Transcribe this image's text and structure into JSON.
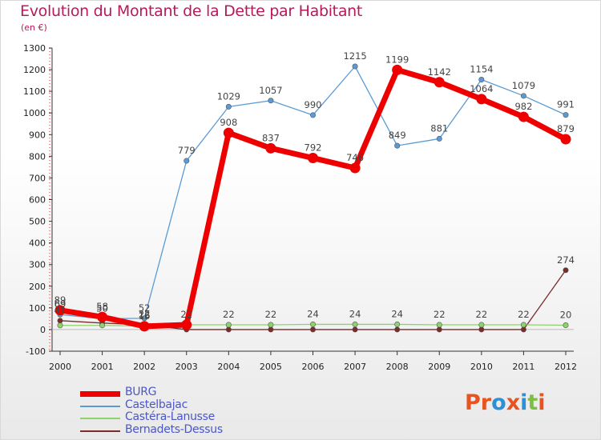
{
  "header": {
    "title": "Evolution du Montant de la Dette par Habitant",
    "subtitle": "(en €)"
  },
  "logo": {
    "text": "Proxiti",
    "colors": [
      "#e8541f",
      "#e8541f",
      "#2d8fd5",
      "#e8541f",
      "#2d8fd5",
      "#7bc043",
      "#e8541f"
    ]
  },
  "chart_data": {
    "type": "line",
    "title": "Evolution du Montant de la Dette par Habitant",
    "subtitle": "(en €)",
    "xlabel": "",
    "ylabel": "",
    "x": [
      "2000",
      "2001",
      "2002",
      "2003",
      "2004",
      "2005",
      "2006",
      "2007",
      "2008",
      "2009",
      "2010",
      "2011",
      "2012"
    ],
    "ylim": [
      -100,
      1300
    ],
    "yticks": [
      -100,
      0,
      100,
      200,
      300,
      400,
      500,
      600,
      700,
      800,
      900,
      1000,
      1100,
      1200,
      1300
    ],
    "grid": false,
    "legend_position": "bottom-left",
    "series": [
      {
        "name": "BURG",
        "color": "#ee0000",
        "values": [
          89,
          58,
          15,
          22,
          908,
          837,
          792,
          746,
          1199,
          1142,
          1064,
          982,
          879
        ],
        "labels": [
          "89",
          "58",
          "15",
          "22",
          "908",
          "837",
          "792",
          "746",
          "1199",
          "1142",
          "1064",
          "982",
          "879"
        ]
      },
      {
        "name": "Castelbajac",
        "color": "#5b9bd5",
        "values": [
          69,
          50,
          52,
          779,
          1029,
          1057,
          990,
          1215,
          849,
          881,
          1154,
          1079,
          991
        ],
        "labels": [
          "69",
          "50",
          "52",
          "779",
          "1029",
          "1057",
          "990",
          "1215",
          "849",
          "881",
          "1154",
          "1079",
          "991"
        ]
      },
      {
        "name": "Castéra-Lanusse",
        "color": "#8ed36a",
        "values": [
          19,
          19,
          16,
          22,
          22,
          22,
          24,
          24,
          24,
          22,
          22,
          22,
          20
        ],
        "labels": [
          "",
          "",
          "",
          "",
          "22",
          "22",
          "24",
          "24",
          "24",
          "22",
          "22",
          "22",
          "20"
        ]
      },
      {
        "name": "Bernadets-Dessus",
        "color": "#7a2b2b",
        "values": [
          41,
          30,
          22,
          0,
          0,
          0,
          0,
          0,
          0,
          0,
          0,
          0,
          274
        ],
        "labels": [
          "",
          "",
          "",
          "",
          "",
          "",
          "",
          "",
          "",
          "",
          "",
          "",
          "274"
        ]
      }
    ],
    "extra_labels": [
      {
        "series": "Castelbajac",
        "index": 0,
        "text": "69"
      },
      {
        "series": "Castelbajac",
        "index": 1,
        "text": "50"
      },
      {
        "series": "Bernadets-Dessus",
        "index": 0,
        "text": "41"
      },
      {
        "series": "Bernadets-Dessus",
        "index": 2,
        "text": "22"
      },
      {
        "series": "Castéra-Lanusse",
        "index": 2,
        "text": "16"
      }
    ]
  }
}
